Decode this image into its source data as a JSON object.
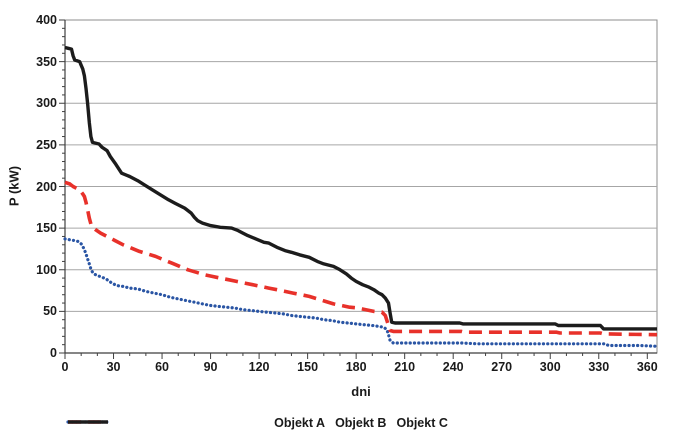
{
  "chart_data": {
    "type": "line",
    "title": "",
    "xlabel": "dni",
    "ylabel": "P (kW)",
    "xlim": [
      0,
      366
    ],
    "ylim": [
      0,
      400
    ],
    "x_ticks": [
      0,
      30,
      60,
      90,
      120,
      150,
      180,
      210,
      240,
      270,
      300,
      330,
      360
    ],
    "y_ticks": [
      0,
      50,
      100,
      150,
      200,
      250,
      300,
      350,
      400
    ],
    "x_minor_step": 10,
    "y_minor_step": 10,
    "grid": "horizontal-only",
    "legend_position": "bottom-center",
    "series": [
      {
        "name": "Objekt A",
        "color": "#2a55a4",
        "style": "dotted",
        "points": [
          [
            0,
            137
          ],
          [
            3,
            136
          ],
          [
            6,
            135
          ],
          [
            8,
            134
          ],
          [
            10,
            131
          ],
          [
            11,
            128
          ],
          [
            12,
            124
          ],
          [
            13,
            119
          ],
          [
            14,
            113
          ],
          [
            15,
            107
          ],
          [
            16,
            101
          ],
          [
            17,
            97
          ],
          [
            18,
            95
          ],
          [
            20,
            93
          ],
          [
            23,
            91
          ],
          [
            26,
            88
          ],
          [
            29,
            84
          ],
          [
            32,
            81
          ],
          [
            36,
            80
          ],
          [
            40,
            78
          ],
          [
            45,
            77
          ],
          [
            50,
            74
          ],
          [
            55,
            72
          ],
          [
            60,
            70
          ],
          [
            65,
            67
          ],
          [
            70,
            65
          ],
          [
            75,
            63
          ],
          [
            80,
            61
          ],
          [
            85,
            59
          ],
          [
            90,
            57
          ],
          [
            95,
            56
          ],
          [
            100,
            55
          ],
          [
            105,
            54
          ],
          [
            110,
            52
          ],
          [
            115,
            51
          ],
          [
            120,
            50
          ],
          [
            125,
            49
          ],
          [
            130,
            48
          ],
          [
            135,
            47
          ],
          [
            140,
            45
          ],
          [
            145,
            44
          ],
          [
            150,
            43
          ],
          [
            155,
            42
          ],
          [
            160,
            40
          ],
          [
            165,
            39
          ],
          [
            170,
            37
          ],
          [
            175,
            36
          ],
          [
            180,
            35
          ],
          [
            185,
            34
          ],
          [
            190,
            33
          ],
          [
            194,
            32
          ],
          [
            197,
            31
          ],
          [
            199,
            28
          ],
          [
            200,
            22
          ],
          [
            201,
            15
          ],
          [
            203,
            12
          ],
          [
            245,
            12
          ],
          [
            255,
            11
          ],
          [
            300,
            11
          ],
          [
            334,
            11
          ],
          [
            336,
            9
          ],
          [
            355,
            9
          ],
          [
            366,
            8
          ]
        ]
      },
      {
        "name": "Objekt B",
        "color": "#e8312a",
        "style": "dashed",
        "points": [
          [
            0,
            205
          ],
          [
            3,
            203
          ],
          [
            5,
            200
          ],
          [
            7,
            198
          ],
          [
            9,
            196
          ],
          [
            11,
            191
          ],
          [
            12,
            188
          ],
          [
            13,
            181
          ],
          [
            14,
            172
          ],
          [
            15,
            162
          ],
          [
            16,
            155
          ],
          [
            17,
            151
          ],
          [
            19,
            148
          ],
          [
            22,
            144
          ],
          [
            25,
            141
          ],
          [
            28,
            138
          ],
          [
            31,
            135
          ],
          [
            36,
            130
          ],
          [
            41,
            126
          ],
          [
            46,
            122
          ],
          [
            51,
            119
          ],
          [
            56,
            116
          ],
          [
            61,
            112
          ],
          [
            66,
            108
          ],
          [
            71,
            104
          ],
          [
            76,
            100
          ],
          [
            81,
            97
          ],
          [
            86,
            94
          ],
          [
            91,
            92
          ],
          [
            96,
            90
          ],
          [
            101,
            88
          ],
          [
            106,
            86
          ],
          [
            111,
            84
          ],
          [
            116,
            82
          ],
          [
            121,
            80
          ],
          [
            126,
            78
          ],
          [
            131,
            76
          ],
          [
            136,
            74
          ],
          [
            141,
            72
          ],
          [
            146,
            70
          ],
          [
            151,
            68
          ],
          [
            156,
            65
          ],
          [
            161,
            62
          ],
          [
            166,
            59
          ],
          [
            171,
            57
          ],
          [
            176,
            55
          ],
          [
            181,
            54
          ],
          [
            186,
            52
          ],
          [
            191,
            50
          ],
          [
            196,
            49
          ],
          [
            198,
            45
          ],
          [
            200,
            33
          ],
          [
            201,
            27
          ],
          [
            203,
            26
          ],
          [
            245,
            26
          ],
          [
            247,
            25
          ],
          [
            304,
            25
          ],
          [
            306,
            24
          ],
          [
            331,
            24
          ],
          [
            333,
            23
          ],
          [
            366,
            22
          ]
        ]
      },
      {
        "name": "Objekt C",
        "color": "#1c1c1c",
        "style": "solid",
        "points": [
          [
            0,
            367
          ],
          [
            2,
            366
          ],
          [
            4,
            365
          ],
          [
            5,
            357
          ],
          [
            6,
            352
          ],
          [
            9,
            350
          ],
          [
            11,
            341
          ],
          [
            12,
            333
          ],
          [
            13,
            318
          ],
          [
            14,
            300
          ],
          [
            15,
            277
          ],
          [
            16,
            260
          ],
          [
            17,
            253
          ],
          [
            21,
            251
          ],
          [
            23,
            247
          ],
          [
            26,
            243
          ],
          [
            28,
            236
          ],
          [
            31,
            228
          ],
          [
            35,
            216
          ],
          [
            40,
            212
          ],
          [
            45,
            207
          ],
          [
            49,
            202
          ],
          [
            54,
            196
          ],
          [
            59,
            190
          ],
          [
            64,
            184
          ],
          [
            68,
            180
          ],
          [
            74,
            174
          ],
          [
            78,
            168
          ],
          [
            80,
            163
          ],
          [
            82,
            159
          ],
          [
            85,
            156
          ],
          [
            90,
            153
          ],
          [
            96,
            151
          ],
          [
            103,
            150
          ],
          [
            107,
            147
          ],
          [
            110,
            144
          ],
          [
            113,
            141
          ],
          [
            118,
            137
          ],
          [
            123,
            133
          ],
          [
            126,
            132
          ],
          [
            131,
            127
          ],
          [
            136,
            123
          ],
          [
            140,
            121
          ],
          [
            145,
            118
          ],
          [
            151,
            115
          ],
          [
            156,
            110
          ],
          [
            160,
            107
          ],
          [
            166,
            104
          ],
          [
            170,
            100
          ],
          [
            174,
            95
          ],
          [
            177,
            90
          ],
          [
            180,
            86
          ],
          [
            184,
            82
          ],
          [
            188,
            79
          ],
          [
            191,
            76
          ],
          [
            194,
            72
          ],
          [
            196,
            70
          ],
          [
            198,
            66
          ],
          [
            200,
            60
          ],
          [
            201,
            48
          ],
          [
            202,
            37
          ],
          [
            204,
            36
          ],
          [
            244,
            36
          ],
          [
            246,
            35
          ],
          [
            303,
            35
          ],
          [
            305,
            33
          ],
          [
            331,
            33
          ],
          [
            333,
            29
          ],
          [
            366,
            29
          ]
        ]
      }
    ]
  },
  "colors": {
    "grid": "#a6a6a6",
    "border": "#8c8c8c",
    "axis": "#3f3f3f",
    "text": "#1a1a1a",
    "background": "#ffffff"
  }
}
